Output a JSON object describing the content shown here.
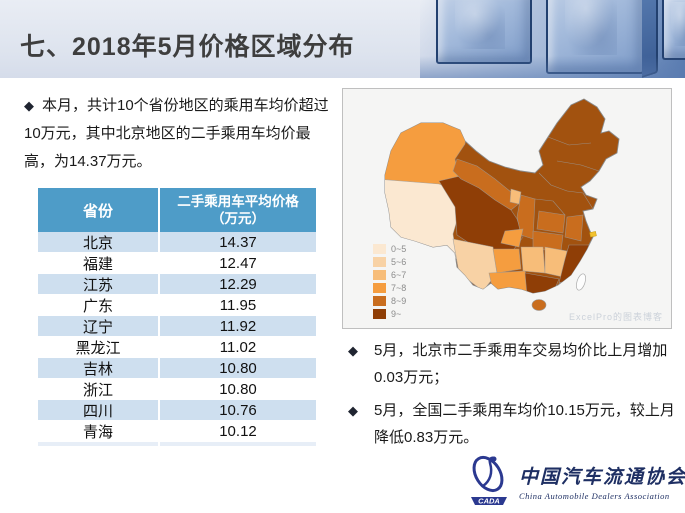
{
  "glyphs": {
    "bullet": "◆"
  },
  "header": {
    "title": "七、2018年5月价格区域分布"
  },
  "left_panel": {
    "summary": "本月，共计10个省份地区的乘用车均价超过10万元，其中北京地区的二手乘用车均价最高，为14.37万元。",
    "table": {
      "col1_header": "省份",
      "col2_header_line1": "二手乘用车平均价格",
      "col2_header_line2": "（万元）",
      "rows": [
        [
          "北京",
          "14.37"
        ],
        [
          "福建",
          "12.47"
        ],
        [
          "江苏",
          "12.29"
        ],
        [
          "广东",
          "11.95"
        ],
        [
          "辽宁",
          "11.92"
        ],
        [
          "黑龙江",
          "11.02"
        ],
        [
          "吉林",
          "10.80"
        ],
        [
          "浙江",
          "10.80"
        ],
        [
          "四川",
          "10.76"
        ],
        [
          "青海",
          "10.12"
        ]
      ]
    }
  },
  "map_panel": {
    "legend": [
      {
        "label": "0~5",
        "color": "#FBE8D1"
      },
      {
        "label": "5~6",
        "color": "#F8D2A5"
      },
      {
        "label": "6~7",
        "color": "#F7BD79"
      },
      {
        "label": "7~8",
        "color": "#F59D3F"
      },
      {
        "label": "8~9",
        "color": "#C96D1E"
      },
      {
        "label": "9~",
        "color": "#8F3E06"
      }
    ],
    "watermark": "ExcelPro的图表博客"
  },
  "notes": [
    "5月，北京市二手乘用车交易均价比上月增加0.03万元；",
    "5月，全国二手乘用车均价10.15万元，较上月降低0.83万元。"
  ],
  "logo": {
    "acronym": "CADA",
    "name_cn": "中国汽车流通协会",
    "name_en": "China Automobile Dealers Association"
  },
  "chart_data": [
    {
      "type": "table",
      "title": "二手乘用车平均价格（万元）",
      "categories": [
        "北京",
        "福建",
        "江苏",
        "广东",
        "辽宁",
        "黑龙江",
        "吉林",
        "浙江",
        "四川",
        "青海"
      ],
      "values": [
        14.37,
        12.47,
        12.29,
        11.95,
        11.92,
        11.02,
        10.8,
        10.8,
        10.76,
        10.12
      ]
    },
    {
      "type": "heatmap",
      "subtype": "china-choropleth",
      "title": "2018年5月价格区域分布",
      "unit": "万元",
      "legend_bins": [
        "0~5",
        "5~6",
        "6~7",
        "7~8",
        "8~9",
        "9~"
      ],
      "legend_position": "bottom-left"
    }
  ]
}
